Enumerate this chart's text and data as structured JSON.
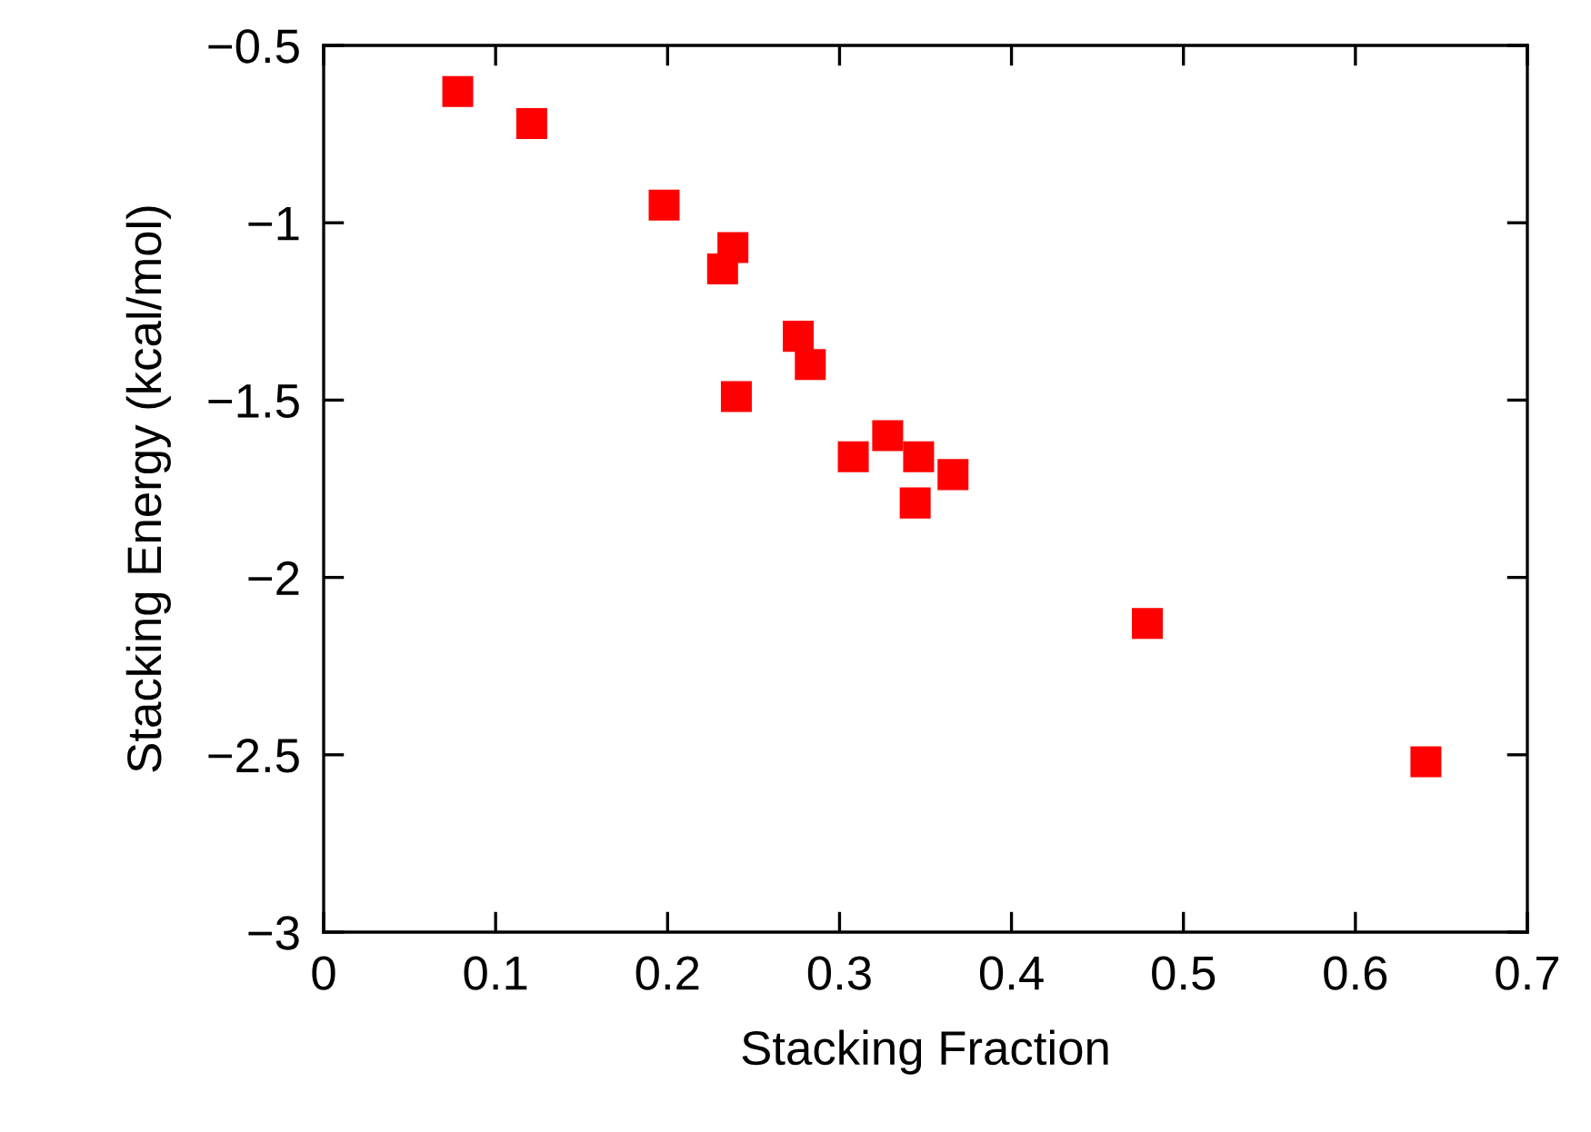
{
  "chart_data": {
    "type": "scatter",
    "xlabel": "Stacking Fraction",
    "ylabel": "Stacking Energy (kcal/mol)",
    "x": [
      0.078,
      0.121,
      0.198,
      0.238,
      0.232,
      0.24,
      0.276,
      0.283,
      0.308,
      0.328,
      0.346,
      0.344,
      0.366,
      0.479,
      0.641
    ],
    "series": [
      {
        "color": "#ff0000",
        "values": [
          -0.63,
          -0.72,
          -0.95,
          -1.07,
          -1.13,
          -1.49,
          -1.32,
          -1.4,
          -1.66,
          -1.6,
          -1.66,
          -1.79,
          -1.71,
          -2.13,
          -2.52
        ]
      }
    ],
    "marker": "square",
    "grid": false,
    "legend": false,
    "xlim": [
      0,
      0.7
    ],
    "xticks": [
      0,
      0.1,
      0.2,
      0.3,
      0.4,
      0.5,
      0.6,
      0.7
    ],
    "ylim": [
      -3,
      -0.5
    ],
    "yticks": [
      {
        "value": -3,
        "label": "−3"
      },
      {
        "value": -2.5,
        "label": "−2.5"
      },
      {
        "value": -2,
        "label": "−2"
      },
      {
        "value": -1.5,
        "label": "−1.5"
      },
      {
        "value": -1,
        "label": "−1"
      },
      {
        "value": -0.5,
        "label": "−0.5"
      }
    ]
  }
}
